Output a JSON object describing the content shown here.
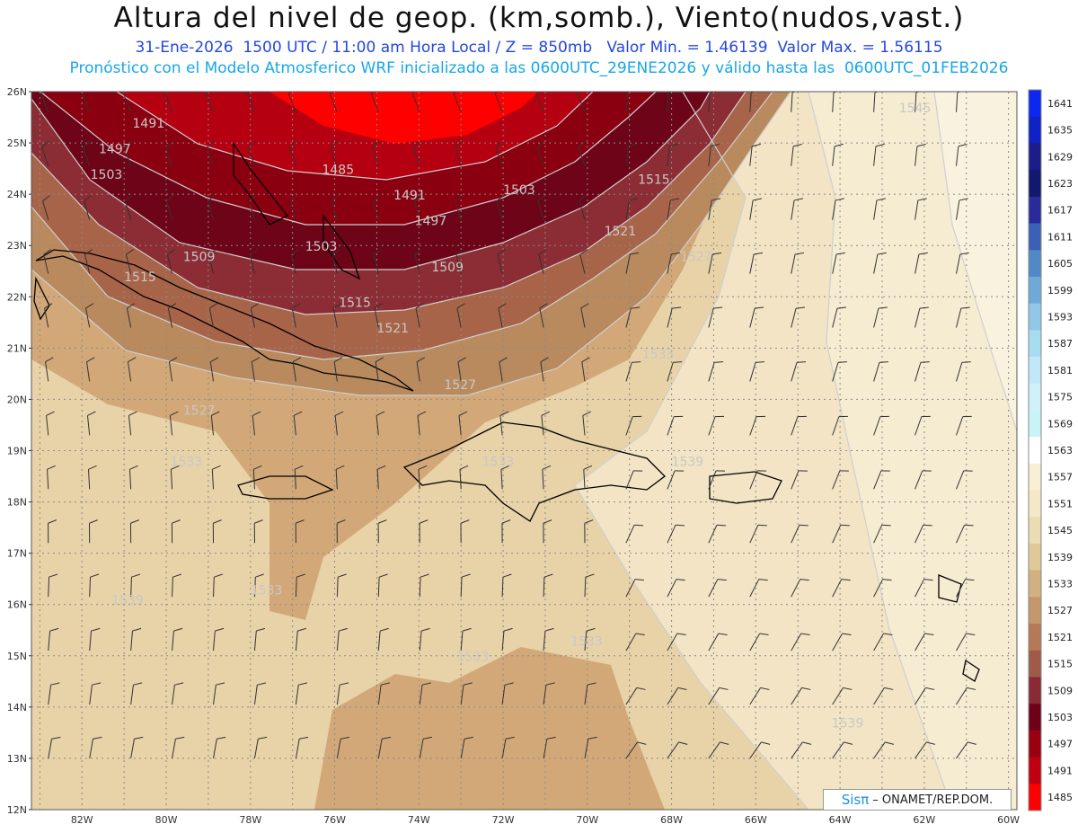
{
  "header": {
    "title": "Altura del nivel de geop. (km,somb.), Viento(nudos,vast.)",
    "line1": "31-Ene-2026  1500 UTC / 11:00 am Hora Local / Z = 850mb   Valor Min. = 1.46139  Valor Max. = 1.56115",
    "line2": "Pronóstico con el Modelo Atmosferico WRF inicializado a las 0600UTC_29ENE2026 y válido hasta las  0600UTC_01FEB2026"
  },
  "map": {
    "lat_labels": [
      "26N",
      "25N",
      "24N",
      "23N",
      "22N",
      "21N",
      "20N",
      "19N",
      "18N",
      "17N",
      "16N",
      "15N",
      "14N",
      "13N",
      "12N"
    ],
    "lon_labels": [
      "82W",
      "80W",
      "78W",
      "76W",
      "74W",
      "72W",
      "70W",
      "68W",
      "66W",
      "64W",
      "62W",
      "60W"
    ],
    "contour_labels": [
      {
        "text": "1491",
        "lon": -80.8,
        "lat": 25.3
      },
      {
        "text": "1497",
        "lon": -81.6,
        "lat": 24.8
      },
      {
        "text": "1503",
        "lon": -81.8,
        "lat": 24.3
      },
      {
        "text": "1485",
        "lon": -76.3,
        "lat": 24.4
      },
      {
        "text": "1491",
        "lon": -74.6,
        "lat": 23.9
      },
      {
        "text": "1497",
        "lon": -74.1,
        "lat": 23.4
      },
      {
        "text": "1503",
        "lon": -72.0,
        "lat": 24.0
      },
      {
        "text": "1515",
        "lon": -68.8,
        "lat": 24.2
      },
      {
        "text": "1509",
        "lon": -79.6,
        "lat": 22.7
      },
      {
        "text": "1503",
        "lon": -76.7,
        "lat": 22.9
      },
      {
        "text": "1509",
        "lon": -73.7,
        "lat": 22.5
      },
      {
        "text": "1521",
        "lon": -69.6,
        "lat": 23.2
      },
      {
        "text": "1527",
        "lon": -67.8,
        "lat": 22.7
      },
      {
        "text": "1515",
        "lon": -81.0,
        "lat": 22.3
      },
      {
        "text": "1515",
        "lon": -75.9,
        "lat": 21.8
      },
      {
        "text": "1521",
        "lon": -75.0,
        "lat": 21.3
      },
      {
        "text": "1533",
        "lon": -68.7,
        "lat": 20.8
      },
      {
        "text": "1527",
        "lon": -73.4,
        "lat": 20.2
      },
      {
        "text": "1527",
        "lon": -79.6,
        "lat": 19.7
      },
      {
        "text": "1533",
        "lon": -79.9,
        "lat": 18.7
      },
      {
        "text": "1533",
        "lon": -72.5,
        "lat": 18.7
      },
      {
        "text": "1539",
        "lon": -68.0,
        "lat": 18.7
      },
      {
        "text": "1545",
        "lon": -62.6,
        "lat": 25.6
      },
      {
        "text": "1539",
        "lon": -81.3,
        "lat": 16.0
      },
      {
        "text": "1533",
        "lon": -78.0,
        "lat": 16.2
      },
      {
        "text": "1533",
        "lon": -73.1,
        "lat": 14.9
      },
      {
        "text": "1533",
        "lon": -70.4,
        "lat": 15.2
      },
      {
        "text": "1539",
        "lon": -64.2,
        "lat": 13.6
      }
    ]
  },
  "colorbar": {
    "labels": [
      "1641",
      "1635",
      "1629",
      "1623",
      "1617",
      "1611",
      "1605",
      "1599",
      "1593",
      "1587",
      "1581",
      "1575",
      "1569",
      "1563",
      "1557",
      "1551",
      "1545",
      "1539",
      "1533",
      "1527",
      "1521",
      "1515",
      "1509",
      "1503",
      "1497",
      "1491",
      "1485"
    ],
    "colors": [
      "#0c28f0",
      "#0f22c4",
      "#1c1c8a",
      "#121870",
      "#2a2a9a",
      "#3a60b8",
      "#5088c8",
      "#70a8d8",
      "#90c8e8",
      "#a8dcf0",
      "#c0e8f8",
      "#d0f0fa",
      "#c8f4f8",
      "#ffffff",
      "#f8f0d4",
      "#f4e8c8",
      "#ecdcb4",
      "#e0c898",
      "#d2b080",
      "#c4986a",
      "#b47a58",
      "#a05a48",
      "#8a2a34",
      "#700018",
      "#9a0010",
      "#c00010",
      "#ff0000"
    ]
  },
  "credit": {
    "logo": "Sisπ",
    "text": "– ONAMET/REP.DOM."
  }
}
